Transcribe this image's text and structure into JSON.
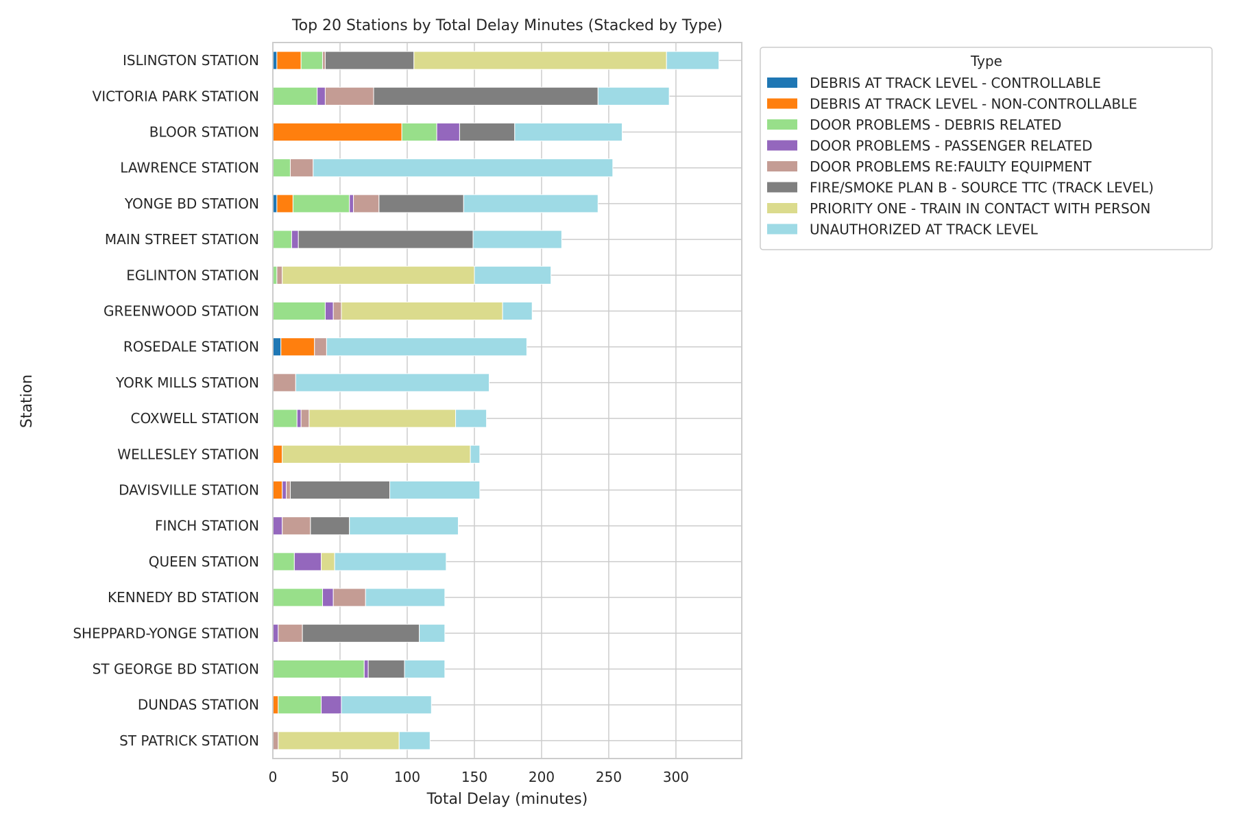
{
  "chart_data": {
    "type": "bar",
    "orientation": "horizontal",
    "stacked": true,
    "title": "Top 20 Stations by Total Delay Minutes (Stacked by Type)",
    "xlabel": "Total Delay (minutes)",
    "ylabel": "Station",
    "xlim": [
      0,
      349
    ],
    "xticks": [
      0,
      50,
      100,
      150,
      200,
      250,
      300
    ],
    "grid": true,
    "legend_title": "Type",
    "legend_position": "outside-upper-right",
    "categories": [
      "ISLINGTON STATION",
      "VICTORIA PARK STATION",
      "BLOOR STATION",
      "LAWRENCE STATION",
      "YONGE BD STATION",
      "MAIN STREET STATION",
      "EGLINTON STATION",
      "GREENWOOD STATION",
      "ROSEDALE STATION",
      "YORK MILLS STATION",
      "COXWELL STATION",
      "WELLESLEY STATION",
      "DAVISVILLE STATION",
      "FINCH STATION",
      "QUEEN STATION",
      "KENNEDY BD STATION",
      "SHEPPARD-YONGE STATION",
      "ST GEORGE BD STATION",
      "DUNDAS STATION",
      "ST PATRICK STATION"
    ],
    "series": [
      {
        "name": "DEBRIS AT TRACK LEVEL - CONTROLLABLE",
        "color": "#1f77b4",
        "values": [
          3,
          0,
          0,
          0,
          3,
          0,
          0,
          0,
          6,
          0,
          0,
          0,
          0,
          0,
          0,
          0,
          0,
          0,
          0,
          0
        ]
      },
      {
        "name": "DEBRIS AT TRACK LEVEL - NON-CONTROLLABLE",
        "color": "#ff7f0e",
        "values": [
          18,
          0,
          96,
          0,
          12,
          0,
          0,
          0,
          25,
          0,
          0,
          7,
          7,
          0,
          0,
          0,
          0,
          0,
          4,
          0
        ]
      },
      {
        "name": "DOOR PROBLEMS - DEBRIS RELATED",
        "color": "#98df8a",
        "values": [
          16,
          33,
          26,
          13,
          42,
          14,
          3,
          39,
          0,
          0,
          18,
          0,
          0,
          0,
          16,
          37,
          0,
          68,
          32,
          0
        ]
      },
      {
        "name": "DOOR PROBLEMS - PASSENGER RELATED",
        "color": "#9467bd",
        "values": [
          0,
          6,
          17,
          0,
          3,
          5,
          0,
          6,
          0,
          0,
          3,
          0,
          3,
          7,
          20,
          8,
          4,
          3,
          15,
          0
        ]
      },
      {
        "name": "DOOR PROBLEMS RE:FAULTY EQUIPMENT",
        "color": "#c49c94",
        "values": [
          2,
          36,
          0,
          17,
          19,
          0,
          4,
          6,
          9,
          17,
          6,
          0,
          3,
          21,
          0,
          24,
          18,
          0,
          0,
          4
        ]
      },
      {
        "name": "FIRE/SMOKE PLAN B - SOURCE TTC (TRACK LEVEL)",
        "color": "#7f7f7f",
        "values": [
          66,
          167,
          41,
          0,
          63,
          130,
          0,
          0,
          0,
          0,
          0,
          0,
          74,
          29,
          0,
          0,
          87,
          27,
          0,
          0
        ]
      },
      {
        "name": "PRIORITY ONE - TRAIN IN CONTACT WITH PERSON",
        "color": "#dbdb8d",
        "values": [
          188,
          0,
          0,
          0,
          0,
          0,
          143,
          120,
          0,
          0,
          109,
          140,
          0,
          0,
          10,
          0,
          0,
          0,
          0,
          90
        ]
      },
      {
        "name": "UNAUTHORIZED AT TRACK LEVEL",
        "color": "#9edae5",
        "values": [
          39,
          53,
          80,
          223,
          100,
          66,
          57,
          22,
          149,
          144,
          23,
          7,
          67,
          81,
          83,
          59,
          19,
          30,
          67,
          23
        ]
      }
    ]
  }
}
